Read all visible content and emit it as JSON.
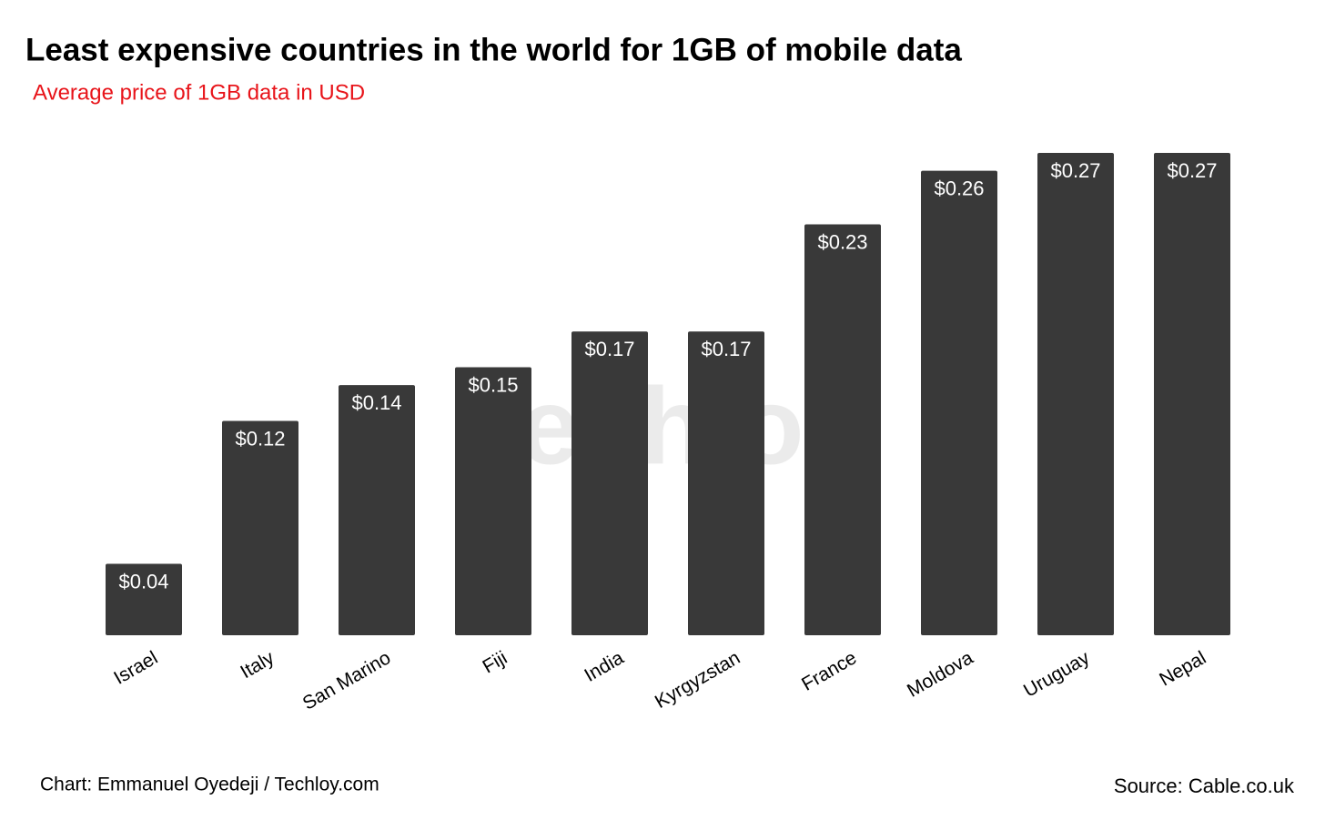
{
  "chart_data": {
    "type": "bar",
    "title": "Least expensive countries in the world for 1GB of mobile data",
    "subtitle": "Average price of 1GB data in USD",
    "categories": [
      "Israel",
      "Italy",
      "San Marino",
      "Fiji",
      "India",
      "Kyrgyzstan",
      "France",
      "Moldova",
      "Uruguay",
      "Nepal"
    ],
    "values": [
      0.04,
      0.12,
      0.14,
      0.15,
      0.17,
      0.17,
      0.23,
      0.26,
      0.27,
      0.27
    ],
    "value_labels": [
      "$0.04",
      "$0.12",
      "$0.14",
      "$0.15",
      "$0.17",
      "$0.17",
      "$0.23",
      "$0.26",
      "$0.27",
      "$0.27"
    ],
    "color": "#393939",
    "ylim": [
      0,
      0.27
    ],
    "watermark": "Techloy",
    "credit": "Chart: Emmanuel Oyedeji / Techloy.com",
    "source": "Source: Cable.co.uk"
  }
}
